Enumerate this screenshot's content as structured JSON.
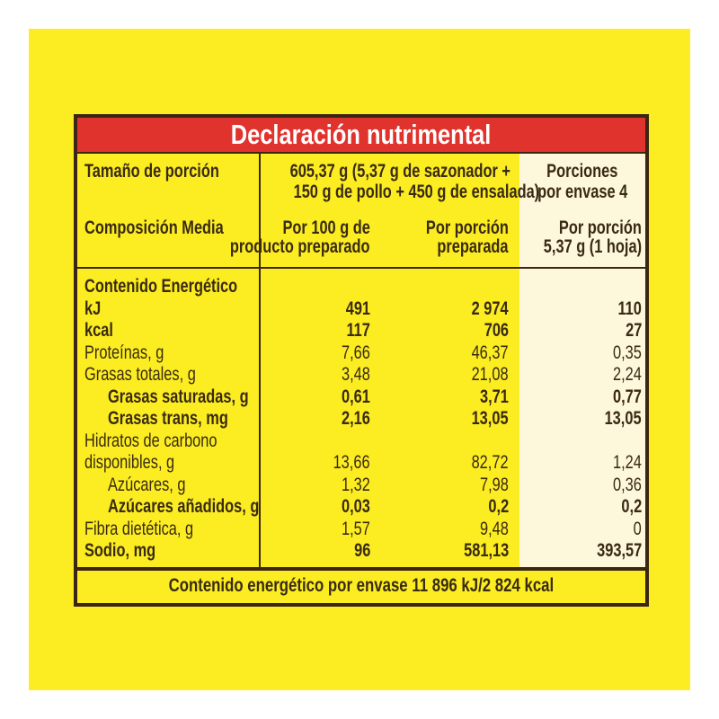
{
  "title": "Declaración nutrimental",
  "serving": {
    "label": "Tamaño de porción",
    "value_line1": "605,37 g (5,37 g de sazonador +",
    "value_line2": "150 g de pollo + 450 g de ensalada)",
    "portions_line1": "Porciones",
    "portions_line2": "por envase 4"
  },
  "columns": {
    "label": "Composición Media",
    "col1_line1": "Por 100 g de",
    "col1_line2": "producto preparado",
    "col2_line1": "Por porción",
    "col2_line2": "preparada",
    "col3_line1": "Por porción",
    "col3_line2": "5,37 g (1 hoja)"
  },
  "rows": [
    {
      "label": "Contenido Energético",
      "v1": "",
      "v2": "",
      "v3": ""
    },
    {
      "label": "kJ",
      "v1": "491",
      "v2": "2 974",
      "v3": "110"
    },
    {
      "label": "kcal",
      "v1": "117",
      "v2": "706",
      "v3": "27"
    },
    {
      "label": "Proteínas, g",
      "v1": "7,66",
      "v2": "46,37",
      "v3": "0,35"
    },
    {
      "label": "Grasas totales, g",
      "v1": "3,48",
      "v2": "21,08",
      "v3": "2,24"
    },
    {
      "label": "Grasas saturadas, g",
      "v1": "0,61",
      "v2": "3,71",
      "v3": "0,77"
    },
    {
      "label": "Grasas trans, mg",
      "v1": "2,16",
      "v2": "13,05",
      "v3": "13,05"
    },
    {
      "label": "Hidratos de carbono",
      "v1": "",
      "v2": "",
      "v3": ""
    },
    {
      "label": "disponibles, g",
      "v1": "13,66",
      "v2": "82,72",
      "v3": "1,24"
    },
    {
      "label": "Azúcares, g",
      "v1": "1,32",
      "v2": "7,98",
      "v3": "0,36"
    },
    {
      "label": "Azúcares añadidos, g",
      "v1": "0,03",
      "v2": "0,2",
      "v3": "0,2"
    },
    {
      "label": "Fibra dietética, g",
      "v1": "1,57",
      "v2": "9,48",
      "v3": "0"
    },
    {
      "label": "Sodio, mg",
      "v1": "96",
      "v2": "581,13",
      "v3": "393,57"
    }
  ],
  "footer": "Contenido energético por envase 11 896 kJ/2 824 kcal",
  "colors": {
    "background": "#fbed21",
    "header": "#e1332d",
    "text": "#3a2a14",
    "highlight_column": "#fdf7dc"
  }
}
